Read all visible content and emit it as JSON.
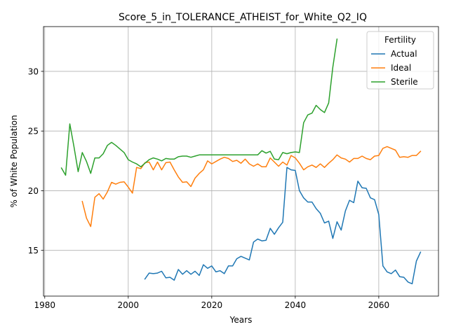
{
  "chart_data": {
    "type": "line",
    "title": "Score_5_in_TOLERANCE_ATHEIST_for_White_Q2_IQ",
    "xlabel": "Years",
    "ylabel": "% of White Population",
    "xlim": [
      1979.7,
      2074.3
    ],
    "ylim": [
      11.17,
      33.75
    ],
    "xticks": [
      1980,
      2000,
      2020,
      2040,
      2060
    ],
    "yticks": [
      15,
      20,
      25,
      30
    ],
    "grid": true,
    "legend": {
      "title": "Fertility",
      "placement": "top-right"
    },
    "series": [
      {
        "name": "Actual",
        "color": "#1f77b4",
        "x": [
          2004,
          2005,
          2006,
          2007,
          2008,
          2009,
          2010,
          2011,
          2012,
          2013,
          2014,
          2015,
          2016,
          2017,
          2018,
          2019,
          2020,
          2021,
          2022,
          2023,
          2024,
          2025,
          2026,
          2027,
          2028,
          2029,
          2030,
          2031,
          2032,
          2033,
          2034,
          2035,
          2036,
          2037,
          2038,
          2039,
          2040,
          2041,
          2042,
          2043,
          2044,
          2045,
          2046,
          2047,
          2048,
          2049,
          2050,
          2051,
          2052,
          2053,
          2054,
          2055,
          2056,
          2057,
          2058,
          2059,
          2060,
          2061,
          2062,
          2063,
          2064,
          2065,
          2066,
          2067,
          2068,
          2069,
          2070
        ],
        "values": [
          12.6,
          13.1,
          13.05,
          13.1,
          13.25,
          12.7,
          12.75,
          12.5,
          13.4,
          13.0,
          13.3,
          13.0,
          13.25,
          12.9,
          13.8,
          13.5,
          13.7,
          13.2,
          13.3,
          13.05,
          13.7,
          13.7,
          14.3,
          14.5,
          14.35,
          14.2,
          15.7,
          15.95,
          15.8,
          15.85,
          16.85,
          16.35,
          16.9,
          17.35,
          21.95,
          21.75,
          21.7,
          20.0,
          19.4,
          19.05,
          19.05,
          18.5,
          18.1,
          17.3,
          17.45,
          16.0,
          17.4,
          16.7,
          18.3,
          19.2,
          19.0,
          20.8,
          20.25,
          20.2,
          19.4,
          19.25,
          18.0,
          13.7,
          13.2,
          13.05,
          13.35,
          12.8,
          12.75,
          12.35,
          12.2,
          14.1,
          14.85
        ]
      },
      {
        "name": "Ideal",
        "color": "#ff7f0e",
        "x": [
          1989,
          1990,
          1991,
          1992,
          1993,
          1994,
          1995,
          1996,
          1997,
          1998,
          1999,
          2000,
          2001,
          2002,
          2003,
          2004,
          2005,
          2006,
          2007,
          2008,
          2009,
          2010,
          2011,
          2012,
          2013,
          2014,
          2015,
          2016,
          2017,
          2018,
          2019,
          2020,
          2021,
          2022,
          2023,
          2024,
          2025,
          2026,
          2027,
          2028,
          2029,
          2030,
          2031,
          2032,
          2033,
          2034,
          2035,
          2036,
          2037,
          2038,
          2039,
          2040,
          2041,
          2042,
          2043,
          2044,
          2045,
          2046,
          2047,
          2048,
          2049,
          2050,
          2051,
          2052,
          2053,
          2054,
          2055,
          2056,
          2057,
          2058,
          2059,
          2060,
          2061,
          2062,
          2063,
          2064,
          2065,
          2066,
          2067,
          2068,
          2069,
          2070
        ],
        "values": [
          19.1,
          17.7,
          17.0,
          19.45,
          19.75,
          19.3,
          19.9,
          20.7,
          20.55,
          20.7,
          20.75,
          20.3,
          19.8,
          21.95,
          21.85,
          22.35,
          22.4,
          21.75,
          22.4,
          21.75,
          22.35,
          22.4,
          21.75,
          21.15,
          20.7,
          20.75,
          20.35,
          21.05,
          21.45,
          21.75,
          22.5,
          22.25,
          22.45,
          22.65,
          22.8,
          22.7,
          22.45,
          22.55,
          22.3,
          22.65,
          22.25,
          22.05,
          22.25,
          22.0,
          22.0,
          22.75,
          22.4,
          22.05,
          22.4,
          22.15,
          22.95,
          22.75,
          22.3,
          21.75,
          22.0,
          22.15,
          21.95,
          22.25,
          21.95,
          22.3,
          22.6,
          23.0,
          22.75,
          22.65,
          22.4,
          22.7,
          22.7,
          22.9,
          22.7,
          22.6,
          22.9,
          22.95,
          23.55,
          23.7,
          23.55,
          23.4,
          22.8,
          22.85,
          22.8,
          22.95,
          22.95,
          23.3
        ]
      },
      {
        "name": "Sterile",
        "color": "#2ca02c",
        "x": [
          1984,
          1985,
          1986,
          1987,
          1988,
          1989,
          1990,
          1991,
          1992,
          1993,
          1994,
          1995,
          1996,
          1997,
          1998,
          1999,
          2000,
          2001,
          2002,
          2003,
          2004,
          2005,
          2006,
          2007,
          2008,
          2009,
          2010,
          2011,
          2012,
          2013,
          2014,
          2015,
          2016,
          2017,
          2018,
          2019,
          2020,
          2021,
          2022,
          2023,
          2024,
          2025,
          2026,
          2027,
          2028,
          2029,
          2030,
          2031,
          2032,
          2033,
          2034,
          2035,
          2036,
          2037,
          2038,
          2039,
          2040,
          2041,
          2042,
          2043,
          2044,
          2045,
          2046,
          2047,
          2048,
          2049,
          2050
        ],
        "values": [
          21.9,
          21.3,
          25.6,
          23.7,
          21.6,
          23.2,
          22.45,
          21.45,
          22.75,
          22.75,
          23.1,
          23.8,
          24.05,
          23.8,
          23.5,
          23.2,
          22.6,
          22.4,
          22.25,
          22.0,
          22.3,
          22.6,
          22.75,
          22.65,
          22.5,
          22.7,
          22.65,
          22.65,
          22.85,
          22.9,
          22.9,
          22.8,
          22.9,
          23.0,
          23.0,
          23.0,
          23.0,
          23.0,
          23.0,
          23.0,
          23.0,
          23.0,
          23.0,
          23.0,
          23.0,
          23.0,
          23.0,
          23.0,
          23.35,
          23.15,
          23.3,
          22.65,
          22.6,
          23.2,
          23.1,
          23.2,
          23.25,
          23.2,
          25.7,
          26.35,
          26.5,
          27.15,
          26.8,
          26.55,
          27.35,
          30.35,
          32.7
        ]
      }
    ]
  }
}
